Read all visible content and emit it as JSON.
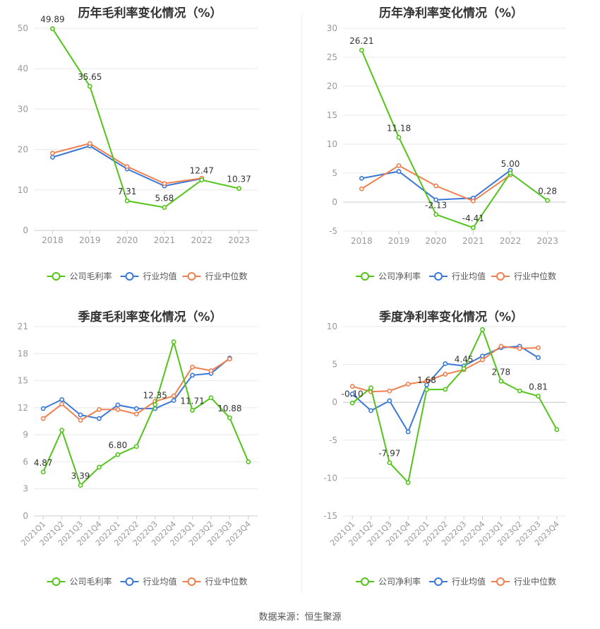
{
  "source": "数据来源：恒生聚源",
  "colors": {
    "company": "#52c41a",
    "avg": "#3b78d8",
    "median": "#f08050",
    "axis": "#999999",
    "grid": "#e8e8e8",
    "label": "#333333"
  },
  "charts": [
    {
      "id": "annual-gross",
      "title": "历年毛利率变化情况（%）",
      "legend": [
        "公司毛利率",
        "行业均值",
        "行业中位数"
      ]
    },
    {
      "id": "annual-net",
      "title": "历年净利率变化情况（%）",
      "legend": [
        "公司净利率",
        "行业均值",
        "行业中位数"
      ]
    },
    {
      "id": "quarter-gross",
      "title": "季度毛利率变化情况（%）",
      "legend": [
        "公司毛利率",
        "行业均值",
        "行业中位数"
      ]
    },
    {
      "id": "quarter-net",
      "title": "季度净利率变化情况（%）",
      "legend": [
        "公司净利率",
        "行业均值",
        "行业中位数"
      ]
    }
  ],
  "chart_data": [
    {
      "type": "line",
      "title": "历年毛利率变化情况（%）",
      "categories": [
        "2018",
        "2019",
        "2020",
        "2021",
        "2022",
        "2023"
      ],
      "ylim": [
        0,
        50
      ],
      "yticks": [
        0,
        10,
        20,
        30,
        40,
        50
      ],
      "series": [
        {
          "name": "公司毛利率",
          "values": [
            49.89,
            35.65,
            7.31,
            5.68,
            12.47,
            10.37
          ],
          "labels": [
            "49.89",
            "35.65",
            "7.31",
            "5.68",
            "12.47",
            "10.37"
          ]
        },
        {
          "name": "行业均值",
          "values": [
            18.1,
            20.9,
            15.2,
            11.0,
            12.8,
            null
          ]
        },
        {
          "name": "行业中位数",
          "values": [
            19.1,
            21.5,
            15.8,
            11.6,
            12.9,
            null
          ]
        }
      ]
    },
    {
      "type": "line",
      "title": "历年净利率变化情况（%）",
      "categories": [
        "2018",
        "2019",
        "2020",
        "2021",
        "2022",
        "2023"
      ],
      "ylim": [
        -5,
        30
      ],
      "yticks": [
        -5,
        0,
        5,
        10,
        15,
        20,
        25,
        30
      ],
      "series": [
        {
          "name": "公司净利率",
          "values": [
            26.21,
            11.18,
            -2.13,
            -4.41,
            5.0,
            0.28
          ],
          "labels": [
            "26.21",
            "11.18",
            "-2.13",
            "-4.41",
            "5.00",
            "0.28"
          ]
        },
        {
          "name": "行业均值",
          "values": [
            4.1,
            5.3,
            0.4,
            0.7,
            5.5,
            null
          ]
        },
        {
          "name": "行业中位数",
          "values": [
            2.3,
            6.3,
            2.8,
            0.2,
            4.7,
            null
          ]
        }
      ]
    },
    {
      "type": "line",
      "title": "季度毛利率变化情况（%）",
      "categories": [
        "2021Q1",
        "2021Q2",
        "2021Q3",
        "2021Q4",
        "2022Q1",
        "2022Q2",
        "2022Q3",
        "2022Q4",
        "2023Q1",
        "2023Q2",
        "2023Q3",
        "2023Q4"
      ],
      "ylim": [
        0,
        21
      ],
      "yticks": [
        0,
        3,
        6,
        9,
        12,
        15,
        18,
        21
      ],
      "series": [
        {
          "name": "公司毛利率",
          "values": [
            4.87,
            9.5,
            3.39,
            5.4,
            6.8,
            7.7,
            12.35,
            19.3,
            11.71,
            13.1,
            10.88,
            6.0
          ],
          "labels": [
            "4.87",
            "",
            "3.39",
            "",
            "6.80",
            "",
            "12.35",
            "",
            "11.71",
            "",
            "10.88",
            ""
          ]
        },
        {
          "name": "行业均值",
          "values": [
            11.9,
            12.9,
            11.2,
            10.8,
            12.3,
            11.9,
            11.9,
            12.8,
            15.6,
            15.8,
            17.5,
            null
          ]
        },
        {
          "name": "行业中位数",
          "values": [
            10.8,
            12.4,
            10.6,
            11.8,
            11.8,
            11.3,
            12.7,
            13.3,
            16.5,
            16.1,
            17.4,
            null
          ]
        }
      ]
    },
    {
      "type": "line",
      "title": "季度净利率变化情况（%）",
      "categories": [
        "2021Q1",
        "2021Q2",
        "2021Q3",
        "2021Q4",
        "2022Q1",
        "2022Q2",
        "2022Q3",
        "2022Q4",
        "2023Q1",
        "2023Q2",
        "2023Q3",
        "2023Q4"
      ],
      "ylim": [
        -15,
        10
      ],
      "yticks": [
        -15,
        -10,
        -5,
        0,
        5,
        10
      ],
      "series": [
        {
          "name": "公司净利率",
          "values": [
            -0.1,
            1.9,
            -7.97,
            -10.6,
            1.68,
            1.7,
            4.45,
            9.6,
            2.78,
            1.5,
            0.81,
            -3.6
          ],
          "labels": [
            "-0.10",
            "",
            "-7.97",
            "",
            "1.68",
            "",
            "4.45",
            "",
            "2.78",
            "",
            "0.81",
            ""
          ]
        },
        {
          "name": "行业均值",
          "values": [
            1.1,
            -1.1,
            0.2,
            -3.9,
            2.3,
            5.1,
            4.8,
            6.1,
            7.2,
            7.4,
            5.9,
            null
          ]
        },
        {
          "name": "行业中位数",
          "values": [
            2.1,
            1.4,
            1.5,
            2.4,
            2.8,
            3.7,
            4.3,
            5.6,
            7.4,
            7.1,
            7.2,
            null
          ]
        }
      ]
    }
  ]
}
